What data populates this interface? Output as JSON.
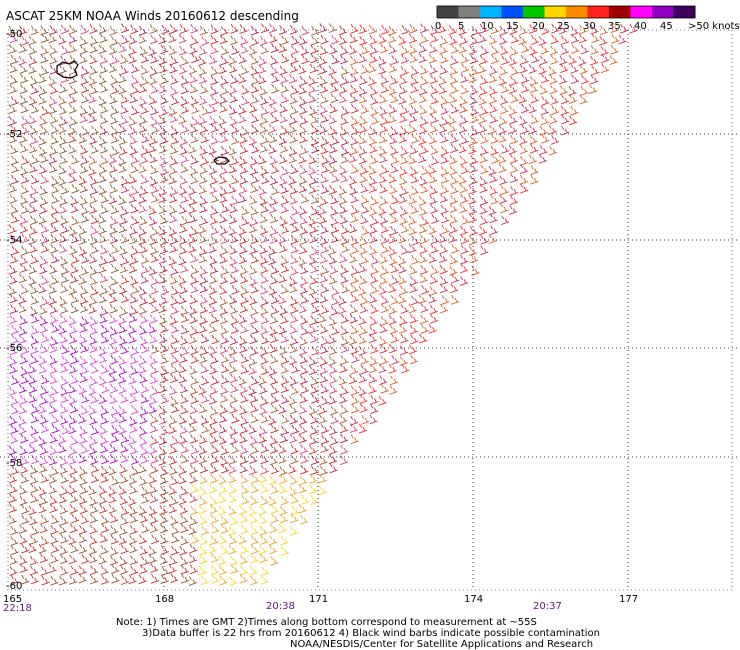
{
  "title": "ASCAT 25KM NOAA Winds 20160612 descending",
  "legend": {
    "colors": [
      "#444444",
      "#808080",
      "#00b4ff",
      "#0050ff",
      "#00c800",
      "#ffd700",
      "#ff8c00",
      "#ff2020",
      "#a00000",
      "#ff00ff",
      "#9000c0",
      "#3c005a"
    ],
    "ticks": [
      "0",
      "5",
      "10",
      "15",
      "20",
      "25",
      "30",
      "35",
      "40",
      "45",
      ">50 knots"
    ]
  },
  "map": {
    "lon_ticks": [
      "165",
      "168",
      "171",
      "174",
      "177"
    ],
    "lat_ticks": [
      "-50",
      "-52",
      "-54",
      "-56",
      "-58",
      "-60"
    ],
    "times": [
      "22:18",
      "20:38",
      "20:37"
    ]
  },
  "notes": [
    "Note: 1) Times are GMT 2)Times along bottom correspond to measurement at ~55S",
    "3)Data buffer is 22 hrs from 20160612 4) Black wind barbs indicate possible contamination",
    "NOAA/NESDIS/Center for Satellite Applications and Research"
  ]
}
